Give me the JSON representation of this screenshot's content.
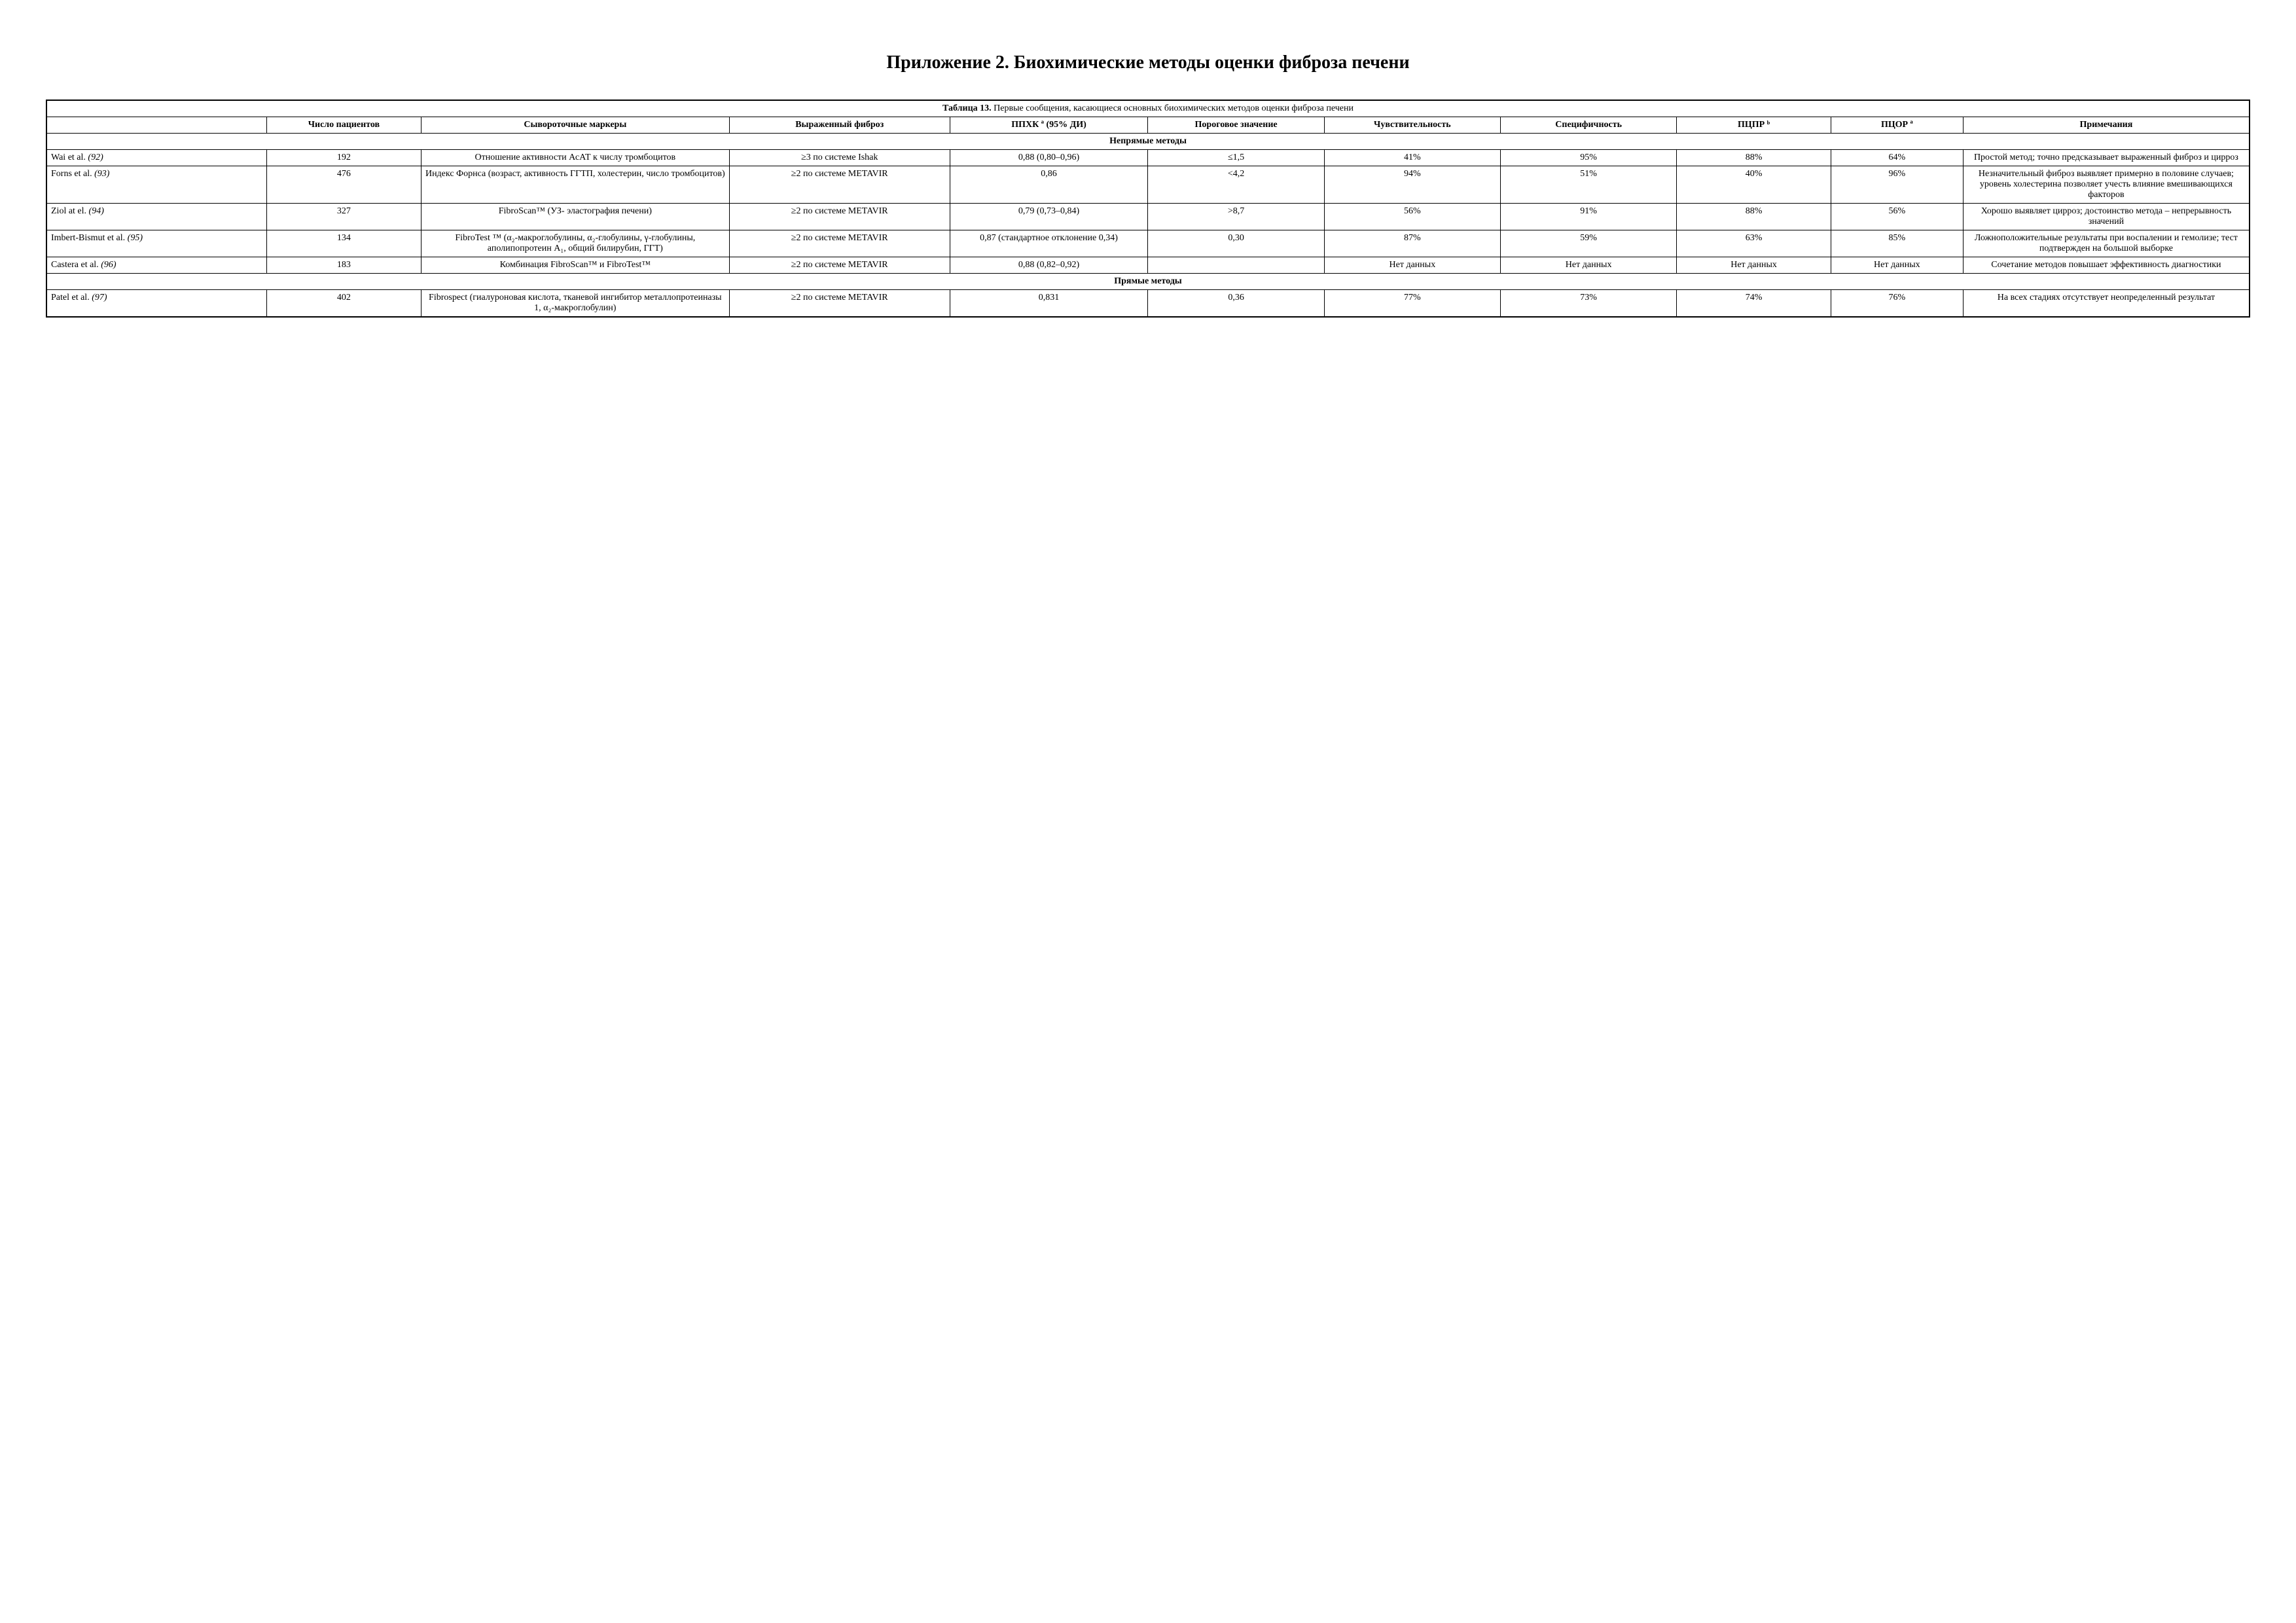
{
  "pageTitle": "Приложение 2. Биохимические методы оценки фиброза печени",
  "table": {
    "captionBold": "Таблица 13.",
    "captionRest": " Первые сообщения, касающиеся основных биохимических методов оценки фиброза печени",
    "headers": {
      "c0": "",
      "c1": "Число пациентов",
      "c2": "Сывороточные маркеры",
      "c3": "Выраженный фиброз",
      "c4": "ППХК ª (95% ДИ)",
      "c5": "Пороговое значение",
      "c6": "Чувствительность",
      "c7": "Специфичность",
      "c8": "ПЦПР ᵇ",
      "c9": "ПЦОР ª",
      "c10": "Примечания"
    },
    "section1": "Непрямые методы",
    "section2": "Прямые методы",
    "rows": [
      {
        "ref": "Wai et al. ",
        "refItalic": "(92)",
        "patients": "192",
        "markers": "Отношение активности АсАТ к числу тромбоцитов",
        "fibrosis": "≥3 по системе Ishak",
        "ppxk": "0,88 (0,80–0,96)",
        "threshold": "≤1,5",
        "sens": "41%",
        "spec": "95%",
        "pcpr": "88%",
        "pcor": "64%",
        "notes": "Простой метод; точно предсказывает выраженный фиброз и цирроз"
      },
      {
        "ref": "Forns et al. ",
        "refItalic": "(93)",
        "patients": "476",
        "markers": "Индекс Форнса (возраст, активность ГГТП, холестерин, число тромбоцитов)",
        "fibrosis": "≥2 по системе METAVIR",
        "ppxk": "0,86",
        "threshold": "<4,2",
        "sens": "94%",
        "spec": "51%",
        "pcpr": "40%",
        "pcor": "96%",
        "notes": "Незначительный фиброз выявляет примерно в половине случаев; уровень холестерина позволяет учесть влияние вмешивающихся факторов"
      },
      {
        "ref": "Ziol at el. ",
        "refItalic": "(94)",
        "patients": "327",
        "markers": "FibroScan™ (УЗ- эластография печени)",
        "fibrosis": "≥2 по системе METAVIR",
        "ppxk": "0,79 (0,73–0,84)",
        "threshold": ">8,7",
        "sens": "56%",
        "spec": "91%",
        "pcpr": "88%",
        "pcor": "56%",
        "notes": "Хорошо выявляет цирроз; достоинство метода – непрерывность значений"
      },
      {
        "ref": "Imbert-Bismut et al. ",
        "refItalic": "(95)",
        "patients": "134",
        "markers": "FibroTest ™ (α₂-макроглобулины, α₂-глобулины, γ-глобулины, аполипопротеин A₁, общий билирубин, ГГТ)",
        "fibrosis": "≥2 по системе METAVIR",
        "ppxk": "0,87 (стандартное отклонение 0,34)",
        "threshold": "0,30",
        "sens": "87%",
        "spec": "59%",
        "pcpr": "63%",
        "pcor": "85%",
        "notes": "Ложноположительные результаты при воспалении и гемолизе; тест подтвержден на большой выборке"
      },
      {
        "ref": "Castera et al. ",
        "refItalic": "(96)",
        "patients": "183",
        "markers": "Комбинация FibroScan™ и FibroTest™",
        "fibrosis": "≥2 по системе METAVIR",
        "ppxk": "0,88 (0,82–0,92)",
        "threshold": "",
        "sens": "Нет данных",
        "spec": "Нет данных",
        "pcpr": "Нет данных",
        "pcor": "Нет данных",
        "notes": "Сочетание методов повышает эффективность диагностики"
      }
    ],
    "rows2": [
      {
        "ref": "Patel et al. ",
        "refItalic": "(97)",
        "patients": "402",
        "markers": "Fibrospect (гиалуроновая кислота, тканевой ингибитор металлопротеиназы 1, α₂-макроглобулин)",
        "fibrosis": "≥2 по системе METAVIR",
        "ppxk": "0,831",
        "threshold": "0,36",
        "sens": "77%",
        "spec": "73%",
        "pcpr": "74%",
        "pcor": "76%",
        "notes": "На всех стадиях отсутствует неопределенный результат"
      }
    ],
    "colWidths": [
      "10%",
      "7%",
      "14%",
      "10%",
      "9%",
      "8%",
      "8%",
      "8%",
      "7%",
      "6%",
      "13%"
    ]
  }
}
